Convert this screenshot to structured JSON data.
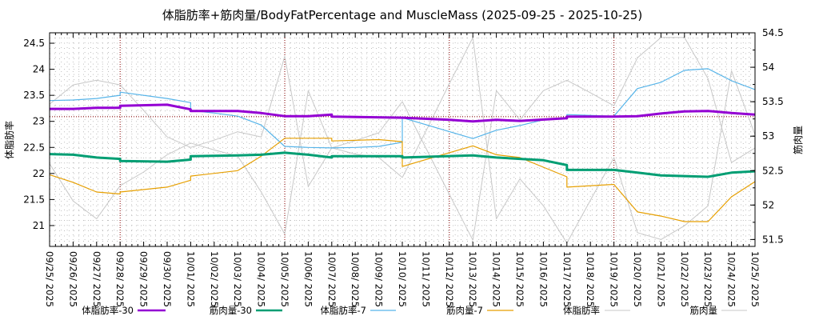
{
  "chart_data": {
    "type": "line",
    "title": "体脂肪率+筋肉量/BodyFatPercentage and MuscleMass (2025-09-25 - 2025-10-25)",
    "ylabel_left": "体脂肪率",
    "ylabel_right": "筋肉量",
    "ylim_left": [
      20.6,
      24.7
    ],
    "ylim_right": [
      51.4,
      54.5
    ],
    "yticks_left": [
      "21",
      "21.5",
      "22",
      "22.5",
      "23",
      "23.5",
      "24",
      "24.5"
    ],
    "yticks_right": [
      "51.5",
      "52",
      "52.5",
      "53",
      "53.5",
      "54",
      "54.5"
    ],
    "grid": true,
    "legend_position": "bottom",
    "x_categories": [
      "09/25/ 2025",
      "09/26/ 2025",
      "09/27/ 2025",
      "09/28/ 2025",
      "09/29/ 2025",
      "09/30/ 2025",
      "10/01/ 2025",
      "10/02/ 2025",
      "10/03/ 2025",
      "10/04/ 2025",
      "10/05/ 2025",
      "10/06/ 2025",
      "10/07/ 2025",
      "10/08/ 2025",
      "10/09/ 2025",
      "10/10/ 2025",
      "10/11/ 2025",
      "10/12/ 2025",
      "10/13/ 2025",
      "10/14/ 2025",
      "10/15/ 2025",
      "10/16/ 2025",
      "10/17/ 2025",
      "10/18/ 2025",
      "10/19/ 2025",
      "10/20/ 2025",
      "10/21/ 2025",
      "10/22/ 2025",
      "10/23/ 2025",
      "10/24/ 2025",
      "10/25/ 2025"
    ],
    "week_markers": [
      3,
      10,
      17,
      24
    ],
    "reference_line_left": 23.09,
    "series": [
      {
        "name": "体脂肪率-30",
        "axis": "left",
        "color": "#9400D3",
        "width": 3,
        "points": [
          [
            0,
            23.24
          ],
          [
            1,
            23.24
          ],
          [
            2,
            23.26
          ],
          [
            3,
            23.26
          ],
          [
            3,
            23.3
          ],
          [
            5,
            23.32
          ],
          [
            6,
            23.23
          ],
          [
            6,
            23.2
          ],
          [
            8,
            23.2
          ],
          [
            9,
            23.16
          ],
          [
            10,
            23.1
          ],
          [
            11,
            23.1
          ],
          [
            12,
            23.13
          ],
          [
            12,
            23.09
          ],
          [
            15,
            23.07
          ],
          [
            17,
            23.03
          ],
          [
            18,
            23.0
          ],
          [
            19,
            23.03
          ],
          [
            20,
            23.01
          ],
          [
            22,
            23.06
          ],
          [
            22,
            23.09
          ],
          [
            24,
            23.09
          ],
          [
            25,
            23.1
          ],
          [
            26,
            23.15
          ],
          [
            27,
            23.19
          ],
          [
            28,
            23.2
          ],
          [
            29,
            23.16
          ],
          [
            30,
            23.13
          ]
        ]
      },
      {
        "name": "筋肉量-30",
        "axis": "right",
        "color": "#009E73",
        "width": 3,
        "points": [
          [
            0,
            52.74
          ],
          [
            1,
            52.73
          ],
          [
            2,
            52.69
          ],
          [
            3,
            52.67
          ],
          [
            3,
            52.64
          ],
          [
            5,
            52.63
          ],
          [
            6,
            52.66
          ],
          [
            6,
            52.71
          ],
          [
            8,
            52.72
          ],
          [
            9,
            52.73
          ],
          [
            10,
            52.76
          ],
          [
            11,
            52.73
          ],
          [
            12,
            52.69
          ],
          [
            12,
            52.71
          ],
          [
            15,
            52.71
          ],
          [
            15,
            52.69
          ],
          [
            18,
            52.72
          ],
          [
            19,
            52.69
          ],
          [
            20,
            52.67
          ],
          [
            21,
            52.65
          ],
          [
            22,
            52.58
          ],
          [
            22,
            52.51
          ],
          [
            24,
            52.51
          ],
          [
            25,
            52.47
          ],
          [
            26,
            52.43
          ],
          [
            27,
            52.42
          ],
          [
            28,
            52.41
          ],
          [
            29,
            52.47
          ],
          [
            30,
            52.49
          ]
        ]
      },
      {
        "name": "体脂肪率-7",
        "axis": "left",
        "color": "#56B4E9",
        "width": 1.2,
        "points": [
          [
            0,
            23.4
          ],
          [
            1,
            23.41
          ],
          [
            2,
            23.44
          ],
          [
            3,
            23.5
          ],
          [
            3,
            23.56
          ],
          [
            5,
            23.44
          ],
          [
            6,
            23.36
          ],
          [
            6,
            23.21
          ],
          [
            7,
            23.16
          ],
          [
            8,
            23.1
          ],
          [
            9,
            22.93
          ],
          [
            10,
            22.52
          ],
          [
            11,
            22.5
          ],
          [
            12,
            22.49
          ],
          [
            13,
            22.5
          ],
          [
            14,
            22.52
          ],
          [
            15,
            22.6
          ],
          [
            15,
            23.07
          ],
          [
            18,
            22.67
          ],
          [
            19,
            22.83
          ],
          [
            20,
            22.92
          ],
          [
            21,
            23.03
          ],
          [
            22,
            23.06
          ],
          [
            22,
            23.13
          ],
          [
            24,
            23.1
          ],
          [
            25,
            23.63
          ],
          [
            26,
            23.75
          ],
          [
            27,
            23.98
          ],
          [
            28,
            24.01
          ],
          [
            29,
            23.78
          ],
          [
            30,
            23.61
          ]
        ]
      },
      {
        "name": "筋肉量-7",
        "axis": "right",
        "color": "#E69F00",
        "width": 1.2,
        "points": [
          [
            0,
            52.44
          ],
          [
            1,
            52.33
          ],
          [
            2,
            52.19
          ],
          [
            3,
            52.16
          ],
          [
            3,
            52.19
          ],
          [
            5,
            52.26
          ],
          [
            6,
            52.36
          ],
          [
            6,
            52.42
          ],
          [
            8,
            52.5
          ],
          [
            9,
            52.71
          ],
          [
            10,
            52.97
          ],
          [
            12,
            52.97
          ],
          [
            12,
            52.93
          ],
          [
            14,
            52.95
          ],
          [
            15,
            52.92
          ],
          [
            15,
            52.56
          ],
          [
            18,
            52.86
          ],
          [
            19,
            52.73
          ],
          [
            20,
            52.69
          ],
          [
            21,
            52.55
          ],
          [
            22,
            52.41
          ],
          [
            22,
            52.26
          ],
          [
            24,
            52.3
          ],
          [
            25,
            51.9
          ],
          [
            26,
            51.84
          ],
          [
            27,
            51.76
          ],
          [
            28,
            51.76
          ],
          [
            29,
            52.12
          ],
          [
            30,
            52.34
          ]
        ]
      },
      {
        "name": "体脂肪率",
        "axis": "left",
        "color": "#c8c8c8",
        "width": 1,
        "points": [
          [
            0,
            23.33
          ],
          [
            1,
            23.7
          ],
          [
            2,
            23.79
          ],
          [
            3,
            23.7
          ],
          [
            4,
            23.21
          ],
          [
            5,
            22.7
          ],
          [
            6,
            22.5
          ],
          [
            7,
            22.64
          ],
          [
            8,
            22.8
          ],
          [
            9,
            22.7
          ],
          [
            10,
            24.25
          ],
          [
            11,
            21.75
          ],
          [
            12,
            22.49
          ],
          [
            13,
            22.63
          ],
          [
            14,
            22.78
          ],
          [
            15,
            23.38
          ],
          [
            16,
            22.49
          ],
          [
            17,
            21.6
          ],
          [
            18,
            20.72
          ],
          [
            19,
            23.59
          ],
          [
            20,
            23.03
          ],
          [
            21,
            23.59
          ],
          [
            22,
            23.79
          ],
          [
            23,
            23.55
          ],
          [
            24,
            23.3
          ],
          [
            25,
            24.22
          ],
          [
            26,
            24.61
          ],
          [
            27,
            24.61
          ],
          [
            28,
            23.82
          ],
          [
            29,
            22.21
          ],
          [
            30,
            22.49
          ]
        ]
      },
      {
        "name": "筋肉量",
        "axis": "right",
        "color": "#c8c8c8",
        "width": 1,
        "points": [
          [
            0,
            52.6
          ],
          [
            1,
            52.06
          ],
          [
            2,
            51.8
          ],
          [
            3,
            52.28
          ],
          [
            4,
            52.48
          ],
          [
            5,
            52.73
          ],
          [
            6,
            52.9
          ],
          [
            7,
            52.8
          ],
          [
            8,
            52.71
          ],
          [
            9,
            52.19
          ],
          [
            10,
            51.58
          ],
          [
            11,
            53.66
          ],
          [
            12,
            52.83
          ],
          [
            13,
            52.74
          ],
          [
            14,
            52.69
          ],
          [
            15,
            52.4
          ],
          [
            16,
            53.07
          ],
          [
            17,
            53.76
          ],
          [
            18,
            54.43
          ],
          [
            19,
            51.8
          ],
          [
            20,
            52.38
          ],
          [
            21,
            51.99
          ],
          [
            22,
            51.45
          ],
          [
            23,
            52.07
          ],
          [
            24,
            52.69
          ],
          [
            25,
            51.6
          ],
          [
            26,
            51.5
          ],
          [
            27,
            51.7
          ],
          [
            28,
            51.99
          ],
          [
            29,
            53.95
          ],
          [
            30,
            53.02
          ]
        ]
      }
    ]
  }
}
